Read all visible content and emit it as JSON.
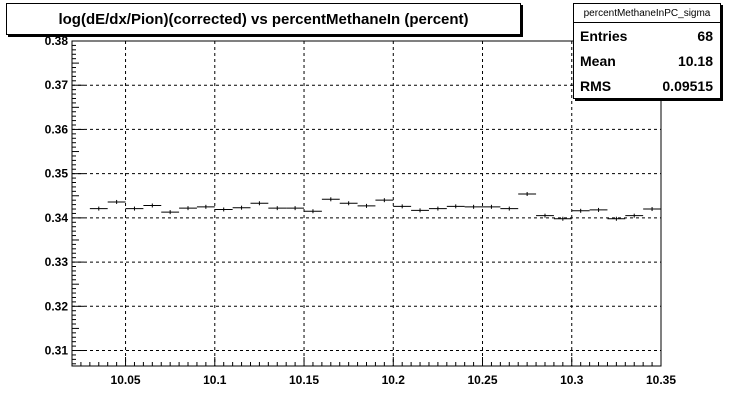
{
  "stats": {
    "name": "percentMethaneInPC_sigma",
    "rows": [
      {
        "label": "Entries",
        "value": "68"
      },
      {
        "label": "Mean",
        "value": "10.18"
      },
      {
        "label": "RMS",
        "value": "0.09515"
      }
    ]
  },
  "chart_data": {
    "type": "scatter",
    "title": "log(dE/dx/Pion)(corrected) vs percentMethaneIn (percent)",
    "xlabel": "",
    "ylabel": "",
    "xlim": [
      10.02,
      10.35
    ],
    "ylim": [
      0.3065,
      0.38
    ],
    "grid": true,
    "x_ticks": [
      10.05,
      10.1,
      10.15,
      10.2,
      10.25,
      10.3,
      10.35
    ],
    "x_tick_labels": [
      "10.05",
      "10.1",
      "10.15",
      "10.2",
      "10.25",
      "10.3",
      "10.35"
    ],
    "y_ticks": [
      0.31,
      0.32,
      0.33,
      0.34,
      0.35,
      0.36,
      0.37,
      0.38
    ],
    "y_tick_labels": [
      "0.31",
      "0.32",
      "0.33",
      "0.34",
      "0.35",
      "0.36",
      "0.37",
      "0.38"
    ],
    "bin_width": 0.01,
    "series": [
      {
        "x": [
          10.035,
          10.045,
          10.055,
          10.065,
          10.075,
          10.085,
          10.095,
          10.105,
          10.115,
          10.125,
          10.135,
          10.145,
          10.155,
          10.165,
          10.175,
          10.185,
          10.195,
          10.205,
          10.215,
          10.225,
          10.235,
          10.245,
          10.255,
          10.265,
          10.275,
          10.285,
          10.295,
          10.305,
          10.315,
          10.325,
          10.335,
          10.345
        ],
        "y": [
          0.3421,
          0.3436,
          0.3421,
          0.3428,
          0.3413,
          0.3422,
          0.3425,
          0.3419,
          0.3423,
          0.3433,
          0.3422,
          0.3422,
          0.3415,
          0.3442,
          0.3433,
          0.3427,
          0.344,
          0.3426,
          0.3417,
          0.3421,
          0.3426,
          0.3425,
          0.3425,
          0.3421,
          0.3454,
          0.3405,
          0.3398,
          0.3416,
          0.3418,
          0.3398,
          0.3405,
          0.342
        ]
      }
    ]
  }
}
